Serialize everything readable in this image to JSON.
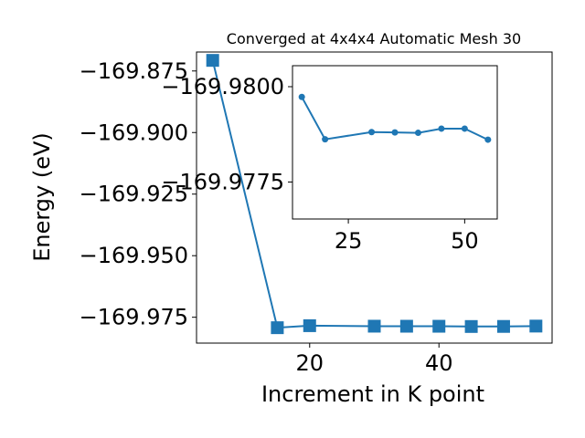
{
  "chart_data": [
    {
      "type": "line",
      "title": "Converged at 4x4x4 Automatic Mesh 30",
      "xlabel": "Increment in K point",
      "ylabel": "Energy (eV)",
      "xlim": [
        2.5,
        57.5
      ],
      "ylim": [
        -169.9855,
        -169.8673
      ],
      "xticks": [
        20,
        40
      ],
      "xtick_labels": [
        "20",
        "40"
      ],
      "yticks": [
        -169.875,
        -169.9,
        -169.925,
        -169.95,
        -169.975
      ],
      "ytick_labels": [
        "−169.875",
        "−169.900",
        "−169.925",
        "−169.950",
        "−169.975"
      ],
      "marker": "square",
      "color": "#1f77b4",
      "series": [
        {
          "x": [
            5,
            15,
            20,
            30,
            35,
            40,
            45,
            50,
            55
          ],
          "y": [
            -169.8707,
            -169.97925,
            -169.97843,
            -169.97863,
            -169.97865,
            -169.97866,
            -169.97876,
            -169.97873,
            -169.97859
          ]
        }
      ]
    },
    {
      "type": "line",
      "title": "",
      "inset": true,
      "xlim": [
        13,
        57
      ],
      "ylim": [
        -169.97653,
        -169.98055
      ],
      "xticks": [
        25,
        50
      ],
      "xtick_labels": [
        "25",
        "50"
      ],
      "yticks": [
        -169.98,
        -169.9775
      ],
      "ytick_labels": [
        "−169.9800",
        "−169.9775"
      ],
      "marker": "circle",
      "color": "#1f77b4",
      "series": [
        {
          "x": [
            15,
            20,
            30,
            35,
            40,
            45,
            50,
            55
          ],
          "y": [
            -169.97973,
            -169.97862,
            -169.97881,
            -169.9788,
            -169.97879,
            -169.9789,
            -169.9789,
            -169.97861
          ]
        }
      ]
    }
  ]
}
